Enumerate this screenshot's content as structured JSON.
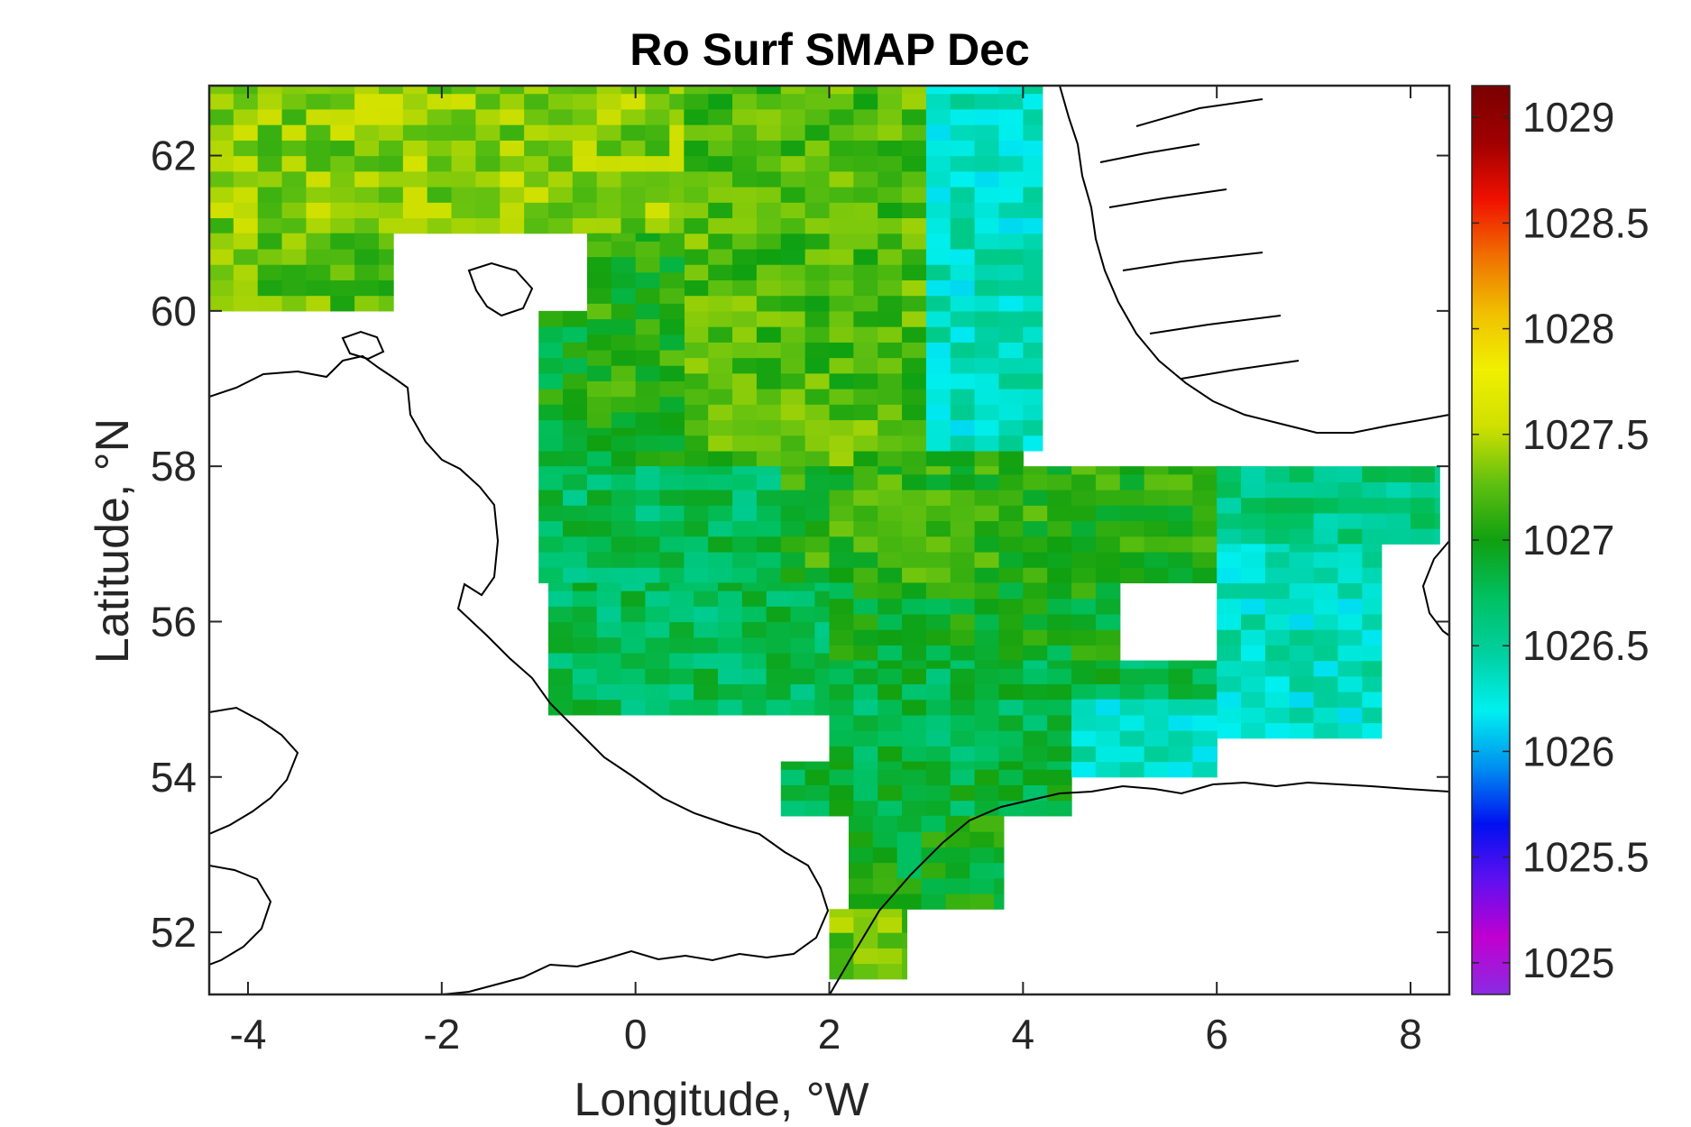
{
  "chart_data": {
    "type": "heatmap",
    "title": "Ro Surf SMAP Dec",
    "xlabel": "Longitude, °W",
    "ylabel": "Latitude, °N",
    "xlim": [
      -4.4,
      8.4
    ],
    "ylim": [
      51.2,
      62.9
    ],
    "xticks": [
      -4,
      -2,
      0,
      2,
      4,
      6,
      8
    ],
    "xtick_labels": [
      "-4",
      "-2",
      "0",
      "2",
      "4",
      "6",
      "8"
    ],
    "yticks": [
      52,
      54,
      56,
      58,
      60,
      62
    ],
    "ytick_labels": [
      "52",
      "54",
      "56",
      "58",
      "60",
      "62"
    ],
    "colorbar": {
      "range": [
        1024.85,
        1029.15
      ],
      "ticks": [
        1025,
        1025.5,
        1026,
        1026.5,
        1027,
        1027.5,
        1028,
        1028.5,
        1029
      ],
      "tick_labels": [
        "1025",
        "1025.5",
        "1026",
        "1026.5",
        "1027",
        "1027.5",
        "1028",
        "1028.5",
        "1029"
      ],
      "colormap": [
        "#8a2be2",
        "#c000d0",
        "#6010f0",
        "#0010f0",
        "#0090f0",
        "#00f0f0",
        "#00d0a0",
        "#00c060",
        "#10a010",
        "#60c010",
        "#d0e000",
        "#f0f000",
        "#f0c000",
        "#f07000",
        "#f01000",
        "#a00000",
        "#7a0000"
      ]
    },
    "cell_size_deg": [
      0.25,
      0.2
    ],
    "grid": false,
    "regions": [
      {
        "lat": [
          61.0,
          62.9
        ],
        "lon": [
          -4.4,
          0.5
        ],
        "value": 1027.35
      },
      {
        "lat": [
          60.0,
          61.0
        ],
        "lon": [
          -4.4,
          -2.5
        ],
        "value": 1027.25
      },
      {
        "lat": [
          58.0,
          62.9
        ],
        "lon": [
          0.5,
          4.0
        ],
        "value": 1027.2
      },
      {
        "lat": [
          58.0,
          60.0
        ],
        "lon": [
          -1.0,
          0.5
        ],
        "value": 1026.95
      },
      {
        "lat": [
          58.5,
          61.0
        ],
        "lon": [
          -0.5,
          0.5
        ],
        "value": 1027.05
      },
      {
        "lat": [
          56.5,
          58.0
        ],
        "lon": [
          -1.0,
          1.5
        ],
        "value": 1026.75
      },
      {
        "lat": [
          56.5,
          58.0
        ],
        "lon": [
          1.5,
          6.5
        ],
        "value": 1027.1
      },
      {
        "lat": [
          54.8,
          56.5
        ],
        "lon": [
          -0.9,
          2.0
        ],
        "value": 1026.75
      },
      {
        "lat": [
          55.5,
          56.5
        ],
        "lon": [
          2.0,
          5.0
        ],
        "value": 1026.95
      },
      {
        "lat": [
          54.2,
          55.5
        ],
        "lon": [
          2.0,
          6.0
        ],
        "value": 1026.8
      },
      {
        "lat": [
          53.5,
          54.2
        ],
        "lon": [
          1.5,
          4.5
        ],
        "value": 1026.85
      },
      {
        "lat": [
          52.3,
          53.5
        ],
        "lon": [
          2.2,
          3.8
        ],
        "value": 1026.95
      },
      {
        "lat": [
          51.4,
          52.3
        ],
        "lon": [
          2.0,
          2.8
        ],
        "value": 1027.3
      },
      {
        "lat": [
          58.2,
          62.9
        ],
        "lon": [
          3.0,
          4.2
        ],
        "value": 1026.35
      },
      {
        "lat": [
          57.0,
          58.0
        ],
        "lon": [
          6.0,
          8.3
        ],
        "value": 1026.6
      },
      {
        "lat": [
          54.5,
          57.0
        ],
        "lon": [
          6.0,
          7.7
        ],
        "value": 1026.35
      },
      {
        "lat": [
          54.0,
          55.0
        ],
        "lon": [
          4.5,
          6.0
        ],
        "value": 1026.3
      }
    ],
    "annotations": []
  }
}
